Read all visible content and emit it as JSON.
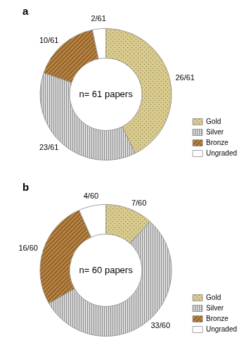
{
  "chart_data": [
    {
      "type": "doughnut",
      "title": "a",
      "annotation": "n= 61 papers",
      "categories": [
        "Gold",
        "Silver",
        "Bronze",
        "Ungraded"
      ],
      "values": [
        26,
        23,
        10,
        2
      ],
      "value_labels": [
        "26/61",
        "23/61",
        "10/61",
        "2/61"
      ],
      "colors": [
        "#d8c98c",
        "#d9d9d9",
        "#b5803f",
        "#ffffff"
      ],
      "legend": "right",
      "data_labels": true
    },
    {
      "type": "doughnut",
      "title": "b",
      "annotation": "n= 60 papers",
      "categories": [
        "Gold",
        "Silver",
        "Bronze",
        "Ungraded"
      ],
      "values": [
        7,
        33,
        16,
        4
      ],
      "value_labels": [
        "7/60",
        "33/60",
        "16/60",
        "4/60"
      ],
      "colors": [
        "#d8c98c",
        "#d9d9d9",
        "#b5803f",
        "#ffffff"
      ],
      "legend": "right",
      "data_labels": true
    }
  ]
}
